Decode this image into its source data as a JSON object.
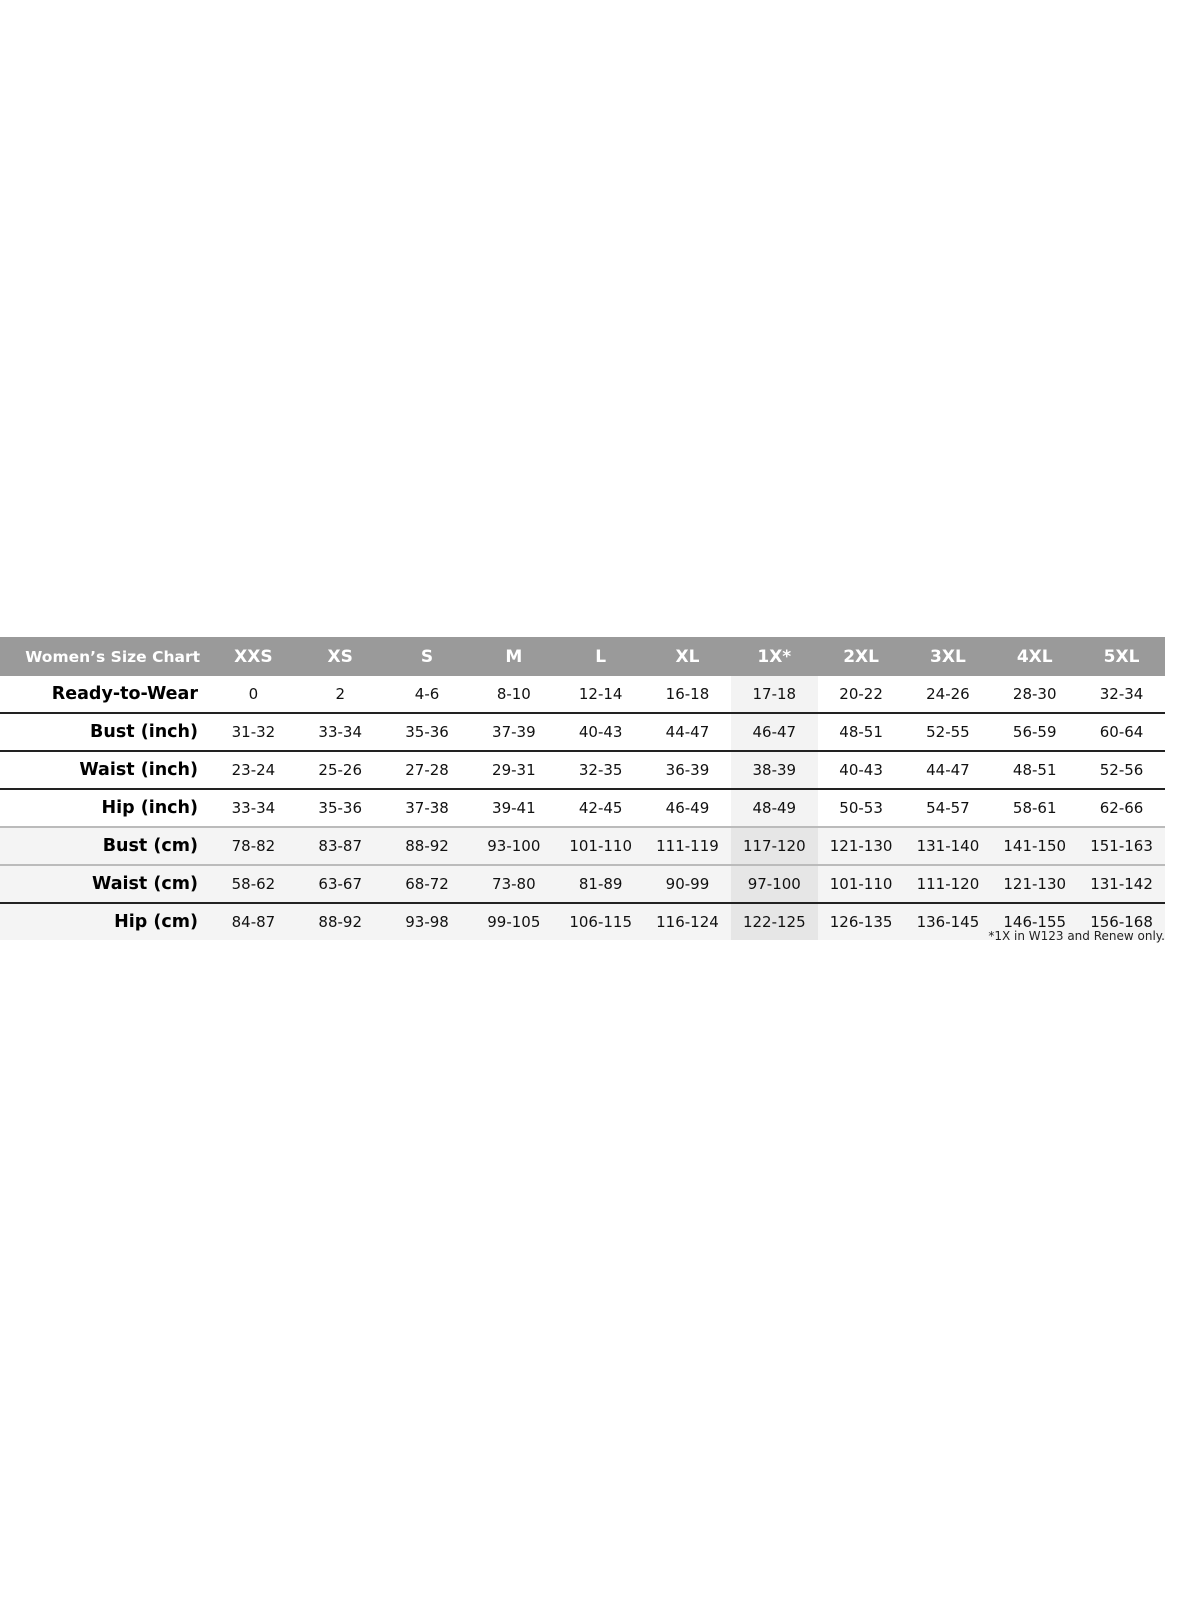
{
  "table": {
    "title": "Women’s Size Chart",
    "sizes": [
      "XXS",
      "XS",
      "S",
      "M",
      "L",
      "XL",
      "1X*",
      "2XL",
      "3XL",
      "4XL",
      "5XL"
    ],
    "rows": [
      {
        "label": "Ready-to-Wear",
        "values": [
          "0",
          "2",
          "4-6",
          "8-10",
          "12-14",
          "16-18",
          "17-18",
          "20-22",
          "24-26",
          "28-30",
          "32-34"
        ]
      },
      {
        "label": "Bust (inch)",
        "values": [
          "31-32",
          "33-34",
          "35-36",
          "37-39",
          "40-43",
          "44-47",
          "46-47",
          "48-51",
          "52-55",
          "56-59",
          "60-64"
        ]
      },
      {
        "label": "Waist (inch)",
        "values": [
          "23-24",
          "25-26",
          "27-28",
          "29-31",
          "32-35",
          "36-39",
          "38-39",
          "40-43",
          "44-47",
          "48-51",
          "52-56"
        ]
      },
      {
        "label": "Hip (inch)",
        "values": [
          "33-34",
          "35-36",
          "37-38",
          "39-41",
          "42-45",
          "46-49",
          "48-49",
          "50-53",
          "54-57",
          "58-61",
          "62-66"
        ]
      },
      {
        "label": "Bust (cm)",
        "values": [
          "78-82",
          "83-87",
          "88-92",
          "93-100",
          "101-110",
          "111-119",
          "117-120",
          "121-130",
          "131-140",
          "141-150",
          "151-163"
        ]
      },
      {
        "label": "Waist (cm)",
        "values": [
          "58-62",
          "63-67",
          "68-72",
          "73-80",
          "81-89",
          "90-99",
          "97-100",
          "101-110",
          "111-120",
          "121-130",
          "131-142"
        ]
      },
      {
        "label": "Hip (cm)",
        "values": [
          "84-87",
          "88-92",
          "93-98",
          "99-105",
          "106-115",
          "116-124",
          "122-125",
          "126-135",
          "136-145",
          "146-155",
          "156-168"
        ]
      }
    ]
  },
  "footnote": "*1X in W123 and Renew only.",
  "colors": {
    "header_bg": "#9a9a9a",
    "header_text": "#ffffff",
    "cm_row_bg": "#f4f4f4",
    "highlight_col": "#e6e6e6"
  }
}
